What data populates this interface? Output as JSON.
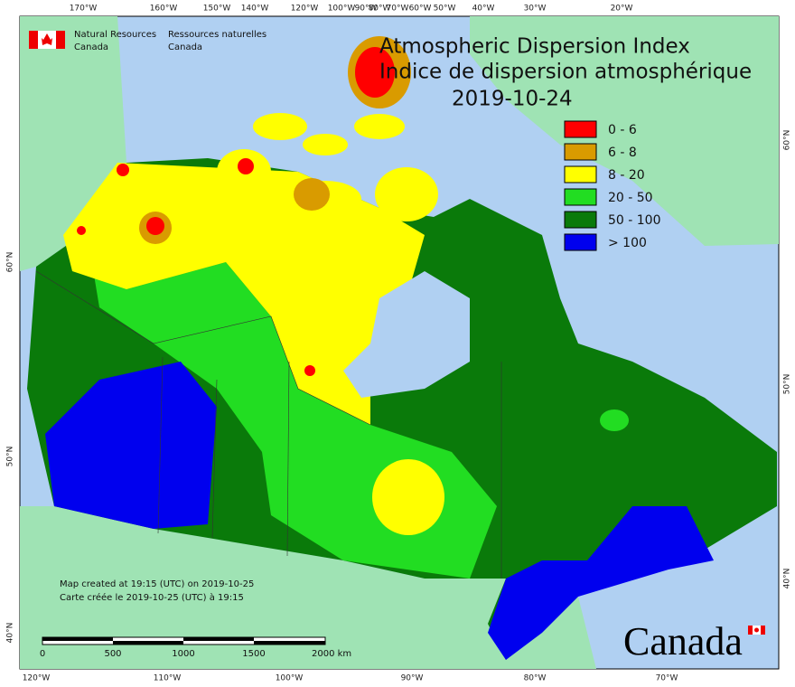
{
  "header": {
    "title_en": "Atmospheric Dispersion Index",
    "title_fr": "Indice de dispersion atmosphérique",
    "date": "2019-10-24",
    "agency_en": [
      "Natural Resources",
      "Canada"
    ],
    "agency_fr": [
      "Ressources naturelles",
      "Canada"
    ]
  },
  "legend": {
    "items": [
      {
        "label": "0 - 6",
        "color": "#ff0000"
      },
      {
        "label": "6 - 8",
        "color": "#d99b00"
      },
      {
        "label": "8 - 20",
        "color": "#ffff00"
      },
      {
        "label": "20 - 50",
        "color": "#22dd22"
      },
      {
        "label": "50 - 100",
        "color": "#0a7a0a"
      },
      {
        "label": "> 100",
        "color": "#0000ee"
      }
    ]
  },
  "notes": [
    "Map created at 19:15 (UTC) on 2019-10-25",
    "Carte créée le 2019-10-25 (UTC) à 19:15"
  ],
  "scale": {
    "labels": [
      "0",
      "500",
      "1000",
      "1500",
      "2000  km"
    ]
  },
  "graticule": {
    "top": [
      "170°W",
      "160°W",
      "150°W",
      "140°W",
      "120°W",
      "100°W",
      "90°W",
      "80°W",
      "70°W",
      "60°W",
      "50°W",
      "40°W",
      "30°W",
      "20°W"
    ],
    "bottom": [
      "120°W",
      "110°W",
      "100°W",
      "90°W",
      "80°W",
      "70°W"
    ],
    "left": [
      "60°N",
      "50°N",
      "40°N"
    ],
    "right": [
      "60°N",
      "50°N",
      "40°N"
    ]
  },
  "wordmark": "Canada"
}
